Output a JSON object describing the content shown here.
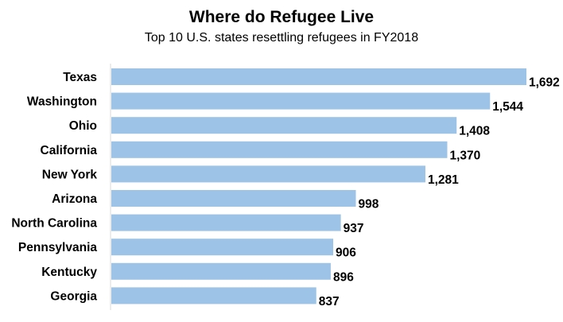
{
  "chart_data": {
    "type": "bar",
    "orientation": "horizontal",
    "title": "Where do Refugee Live",
    "subtitle": "Top 10 U.S. states resettling refugees in FY2018",
    "xlabel": "",
    "ylabel": "",
    "categories": [
      "Texas",
      "Washington",
      "Ohio",
      "California",
      "New York",
      "Arizona",
      "North Carolina",
      "Pennsylvania",
      "Kentucky",
      "Georgia"
    ],
    "values": [
      1692,
      1544,
      1408,
      1370,
      1281,
      998,
      937,
      906,
      896,
      837
    ],
    "value_labels": [
      "1,692",
      "1,544",
      "1,408",
      "1,370",
      "1,281",
      "998",
      "937",
      "906",
      "896",
      "837"
    ],
    "xlim": [
      0,
      1692
    ],
    "grid": false,
    "legend": "none",
    "bar_color": "#9dc3e6",
    "axis_color": "#d9d9d9"
  }
}
